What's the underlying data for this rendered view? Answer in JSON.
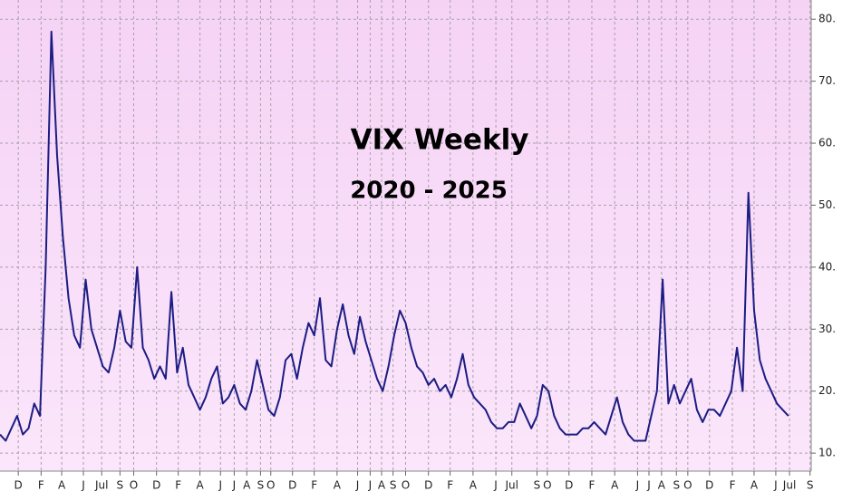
{
  "chart_data": {
    "type": "line",
    "title": "VIX Weekly",
    "subtitle": "2020 - 2025",
    "x": [
      0,
      0.5,
      1,
      1.5,
      2,
      2.5,
      3,
      3.5,
      4,
      4.5,
      5,
      5.5,
      6,
      6.5,
      7,
      7.5,
      8,
      8.5,
      9,
      9.5,
      10,
      10.5,
      11,
      11.5,
      12,
      12.5,
      13,
      13.5,
      14,
      14.5,
      15,
      15.5,
      16,
      16.5,
      17,
      17.5,
      18,
      18.5,
      19,
      19.5,
      20,
      20.5,
      21,
      21.5,
      22,
      22.5,
      23,
      23.5,
      24,
      24.5,
      25,
      25.5,
      26,
      26.5,
      27,
      27.5,
      28,
      28.5,
      29,
      29.5,
      30,
      30.5,
      31,
      31.5,
      32,
      32.5,
      33,
      33.5,
      34,
      34.5,
      35,
      35.5,
      36,
      36.5,
      37,
      37.5,
      38,
      38.5,
      39,
      39.5,
      40,
      40.5,
      41,
      41.5,
      42,
      42.5,
      43,
      43.5,
      44,
      44.5,
      45,
      45.5,
      46,
      46.5,
      47,
      47.5,
      48,
      48.5,
      49,
      49.5,
      50,
      50.5,
      51,
      51.5,
      52,
      52.5,
      53,
      53.5,
      54,
      54.5,
      55,
      55.5,
      56,
      56.5,
      57,
      57.5,
      58,
      58.5,
      59,
      59.5,
      60,
      60.5,
      61,
      61.5,
      62,
      62.5,
      63,
      63.5,
      64,
      64.5,
      65,
      65.5,
      66,
      66.5,
      67,
      67.5,
      68,
      68.5,
      69
    ],
    "series": [
      {
        "name": "VIX",
        "color": "#1c1c84",
        "values": [
          13,
          12,
          14,
          16,
          13,
          14,
          18,
          16,
          40,
          78,
          58,
          45,
          35,
          29,
          27,
          38,
          30,
          27,
          24,
          23,
          27,
          33,
          28,
          27,
          40,
          27,
          25,
          22,
          24,
          22,
          36,
          23,
          27,
          21,
          19,
          17,
          19,
          22,
          24,
          18,
          19,
          21,
          18,
          17,
          20,
          25,
          21,
          17,
          16,
          19,
          25,
          26,
          22,
          27,
          31,
          29,
          35,
          25,
          24,
          30,
          34,
          29,
          26,
          32,
          28,
          25,
          22,
          20,
          24,
          29,
          33,
          31,
          27,
          24,
          23,
          21,
          22,
          20,
          21,
          19,
          22,
          26,
          21,
          19,
          18,
          17,
          15,
          14,
          14,
          15,
          15,
          18,
          16,
          14,
          16,
          21,
          20,
          16,
          14,
          13,
          13,
          13,
          14,
          14,
          15,
          14,
          13,
          16,
          19,
          15,
          13,
          12,
          12,
          12,
          16,
          20,
          38,
          18,
          21,
          18,
          20,
          22,
          17,
          15,
          17,
          17,
          16,
          18,
          20,
          27,
          20,
          52,
          33,
          25,
          22,
          20,
          18,
          17,
          16
        ]
      }
    ],
    "xlim": [
      0,
      71
    ],
    "xticks": [
      {
        "value": 1.6,
        "label": "D"
      },
      {
        "value": 3.6,
        "label": "F"
      },
      {
        "value": 5.4,
        "label": "A"
      },
      {
        "value": 7.3,
        "label": "J"
      },
      {
        "value": 8.9,
        "label": "Jul"
      },
      {
        "value": 10.5,
        "label": "S"
      },
      {
        "value": 11.7,
        "label": "O"
      },
      {
        "value": 13.7,
        "label": "D"
      },
      {
        "value": 15.6,
        "label": "F"
      },
      {
        "value": 17.5,
        "label": "A"
      },
      {
        "value": 19.3,
        "label": "J"
      },
      {
        "value": 20.5,
        "label": "J"
      },
      {
        "value": 21.6,
        "label": "A"
      },
      {
        "value": 22.8,
        "label": "S"
      },
      {
        "value": 23.7,
        "label": "O"
      },
      {
        "value": 25.6,
        "label": "D"
      },
      {
        "value": 27.5,
        "label": "F"
      },
      {
        "value": 29.5,
        "label": "A"
      },
      {
        "value": 31.3,
        "label": "J"
      },
      {
        "value": 32.4,
        "label": "J"
      },
      {
        "value": 33.4,
        "label": "A"
      },
      {
        "value": 34.4,
        "label": "S"
      },
      {
        "value": 35.5,
        "label": "O"
      },
      {
        "value": 37.5,
        "label": "D"
      },
      {
        "value": 39.4,
        "label": "F"
      },
      {
        "value": 41.4,
        "label": "A"
      },
      {
        "value": 43.4,
        "label": "J"
      },
      {
        "value": 44.8,
        "label": "Jul"
      },
      {
        "value": 47.0,
        "label": "S"
      },
      {
        "value": 47.9,
        "label": "O"
      },
      {
        "value": 49.8,
        "label": "D"
      },
      {
        "value": 51.8,
        "label": "F"
      },
      {
        "value": 53.8,
        "label": "A"
      },
      {
        "value": 55.8,
        "label": "J"
      },
      {
        "value": 56.8,
        "label": "J"
      },
      {
        "value": 57.9,
        "label": "A"
      },
      {
        "value": 59.2,
        "label": "S"
      },
      {
        "value": 60.2,
        "label": "O"
      },
      {
        "value": 62.1,
        "label": "D"
      },
      {
        "value": 64.1,
        "label": "F"
      },
      {
        "value": 66.0,
        "label": "A"
      },
      {
        "value": 67.9,
        "label": "J"
      },
      {
        "value": 69.1,
        "label": "Jul"
      },
      {
        "value": 70.9,
        "label": "S"
      }
    ],
    "ylim": [
      7.1,
      83.1
    ],
    "yticks": [
      {
        "value": 10,
        "label": "10."
      },
      {
        "value": 20,
        "label": "20."
      },
      {
        "value": 30,
        "label": "30."
      },
      {
        "value": 40,
        "label": "40."
      },
      {
        "value": 50,
        "label": "50."
      },
      {
        "value": 60,
        "label": "60."
      },
      {
        "value": 70,
        "label": "70."
      },
      {
        "value": 80,
        "label": "80."
      }
    ],
    "grid": true
  }
}
